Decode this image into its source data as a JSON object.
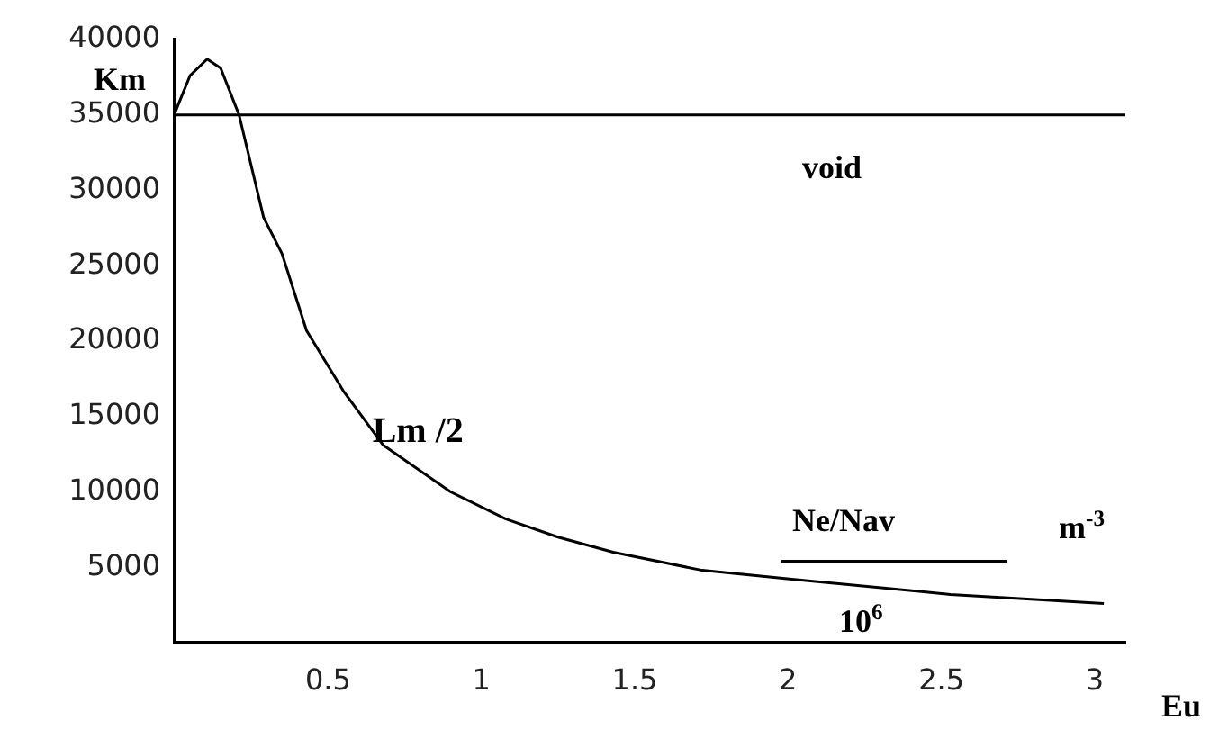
{
  "chart_data": {
    "type": "line",
    "ylabel": "Km",
    "x": [
      0,
      0.05,
      0.106,
      0.15,
      0.21,
      0.29,
      0.35,
      0.43,
      0.49,
      0.55,
      0.68,
      0.9,
      1.08,
      1.25,
      1.43,
      1.72,
      2.02,
      2.53,
      3.03
    ],
    "series": [
      {
        "color": "#000000",
        "values": [
          35100,
          37600,
          38700,
          38100,
          35000,
          28200,
          25800,
          20700,
          18700,
          16700,
          13100,
          10000,
          8200,
          7000,
          6000,
          4800,
          4200,
          3200,
          2600
        ]
      }
    ],
    "xlim": [
      0,
      3.1
    ],
    "xticks": [
      0.5,
      1,
      1.5,
      2,
      2.5,
      3
    ],
    "ylim": [
      0,
      40000
    ],
    "yticks": [
      5000,
      10000,
      15000,
      20000,
      25000,
      30000,
      35000,
      40000
    ],
    "ref_lines": [
      {
        "axis": "y",
        "value": 35000,
        "label": "void",
        "color": "#000000"
      }
    ],
    "annotations": [
      {
        "text": "Lm /2",
        "x": 0.68,
        "y": 13100
      },
      "Ne/Nav",
      "10$^{6}$",
      "m$^{-3}$",
      "Eu"
    ],
    "grid": false,
    "legend": false,
    "marker": "none",
    "line_style": "solid"
  }
}
